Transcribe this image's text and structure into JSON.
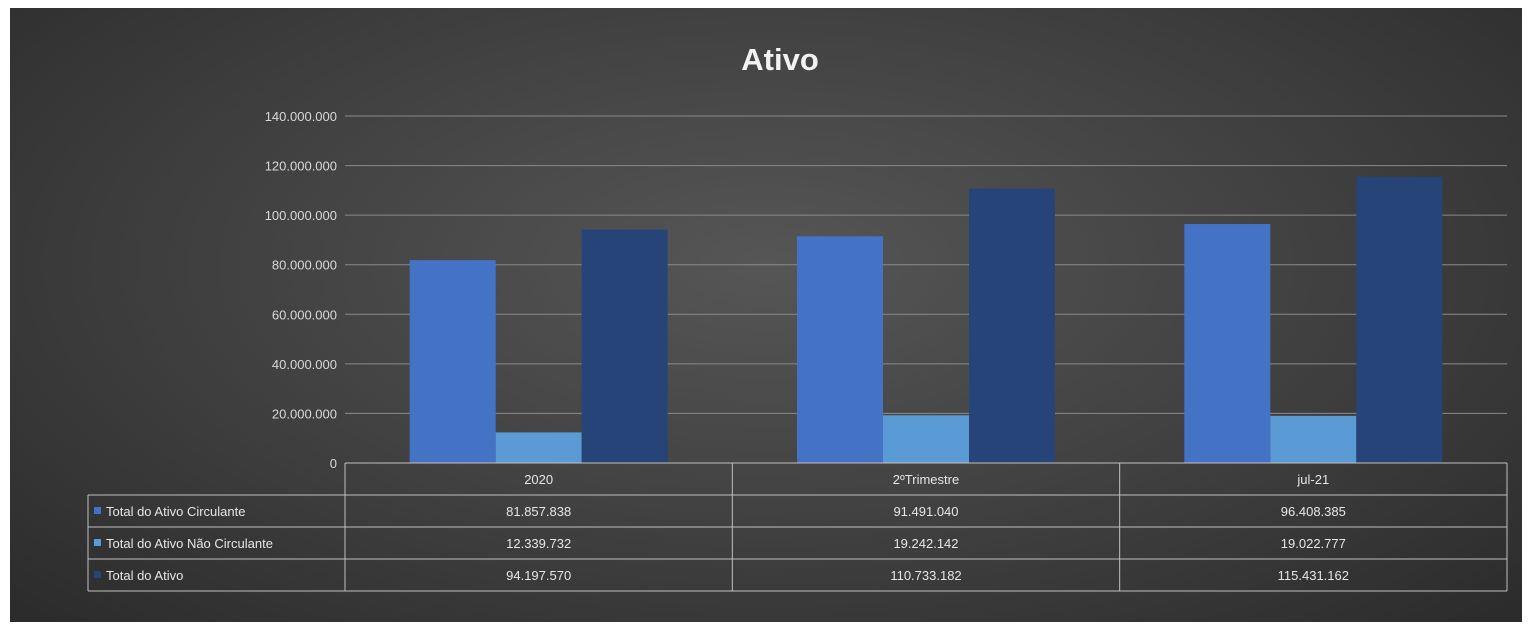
{
  "chart_data": {
    "type": "bar",
    "title": "Ativo",
    "categories": [
      "2020",
      "2ºTrimestre",
      "jul-21"
    ],
    "series": [
      {
        "name": "Total do Ativo Circulante",
        "values": [
          81857838,
          91491040,
          96408385
        ],
        "labels": [
          "81.857.838",
          "91.491.040",
          "96.408.385"
        ],
        "color": "#4472c4"
      },
      {
        "name": "Total do Ativo Não Circulante",
        "values": [
          12339732,
          19242142,
          19022777
        ],
        "labels": [
          "12.339.732",
          "19.242.142",
          "19.022.777"
        ],
        "color": "#5b9bd5"
      },
      {
        "name": "Total do Ativo",
        "values": [
          94197570,
          110733182,
          115431162
        ],
        "labels": [
          "94.197.570",
          "110.733.182",
          "115.431.162"
        ],
        "color": "#264478"
      }
    ],
    "y_ticks": [
      0,
      20000000,
      40000000,
      60000000,
      80000000,
      100000000,
      120000000,
      140000000
    ],
    "y_tick_labels": [
      "0",
      "20.000.000",
      "40.000.000",
      "60.000.000",
      "80.000.000",
      "100.000.000",
      "120.000.000",
      "140.000.000"
    ],
    "ylim": [
      0,
      140000000
    ],
    "grid": true,
    "legend": "data table below chart"
  }
}
